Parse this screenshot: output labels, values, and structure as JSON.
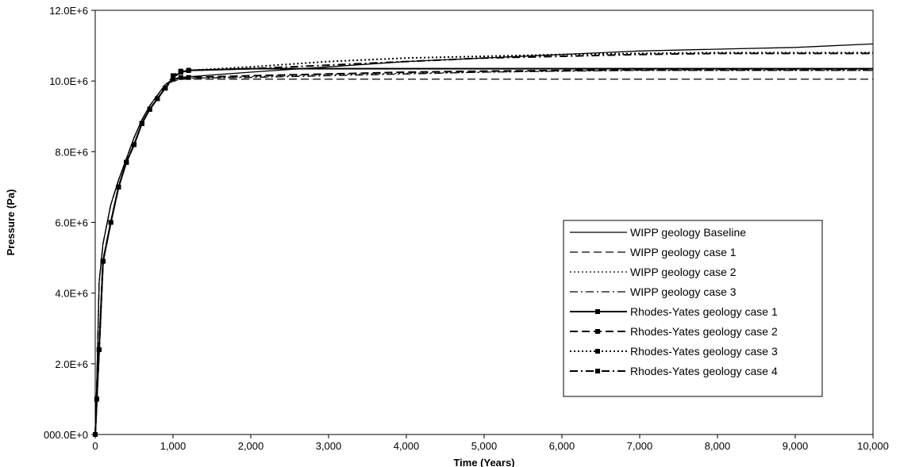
{
  "chart_data": {
    "type": "line",
    "title": "",
    "xlabel": "Time (Years)",
    "ylabel": "Pressure (Pa)",
    "xlim": [
      0,
      10000
    ],
    "ylim": [
      0,
      12000000
    ],
    "x_ticks": [
      0,
      1000,
      2000,
      3000,
      4000,
      5000,
      6000,
      7000,
      8000,
      9000,
      10000
    ],
    "x_tick_labels": [
      "0",
      "1,000",
      "2,000",
      "3,000",
      "4,000",
      "5,000",
      "6,000",
      "7,000",
      "8,000",
      "9,000",
      "10,000"
    ],
    "y_ticks": [
      0,
      2000000,
      4000000,
      6000000,
      8000000,
      10000000,
      12000000
    ],
    "y_tick_labels": [
      "000.0E+0",
      "2.0E+6",
      "4.0E+6",
      "6.0E+6",
      "8.0E+6",
      "10.0E+6",
      "12.0E+6"
    ],
    "grid": false,
    "legend_position": "bottom-right",
    "series": [
      {
        "name": "WIPP geology Baseline",
        "style": "solid",
        "marker": false,
        "x": [
          0,
          20,
          50,
          100,
          200,
          300,
          400,
          500,
          600,
          700,
          800,
          900,
          1000,
          1100,
          1200,
          2000,
          3000,
          4000,
          5000,
          6000,
          7000,
          8000,
          9000,
          10000
        ],
        "y": [
          0,
          1500000,
          4300000,
          5400000,
          6500000,
          7200000,
          7800000,
          8400000,
          8900000,
          9300000,
          9600000,
          9900000,
          10050000,
          10100000,
          10120000,
          10250000,
          10400000,
          10550000,
          10650000,
          10750000,
          10850000,
          10900000,
          10950000,
          11050000
        ]
      },
      {
        "name": "WIPP geology case 1",
        "style": "dash",
        "marker": false,
        "x": [
          0,
          20,
          50,
          100,
          200,
          300,
          400,
          500,
          600,
          700,
          800,
          900,
          1000,
          1100,
          1200,
          2000,
          3000,
          4000,
          5000,
          6000,
          7000,
          8000,
          9000,
          10000
        ],
        "y": [
          0,
          1500000,
          4300000,
          5400000,
          6500000,
          7200000,
          7800000,
          8400000,
          8900000,
          9300000,
          9600000,
          9850000,
          10000000,
          10050000,
          10050000,
          10050000,
          10050000,
          10050000,
          10050000,
          10050000,
          10050000,
          10050000,
          10050000,
          10050000
        ]
      },
      {
        "name": "WIPP geology case 2",
        "style": "dot",
        "marker": false,
        "x": [
          0,
          20,
          50,
          100,
          200,
          300,
          400,
          500,
          600,
          700,
          800,
          900,
          1000,
          1100,
          1200,
          2000,
          3000,
          4000,
          5000,
          6000,
          7000,
          8000,
          9000,
          10000
        ],
        "y": [
          0,
          1500000,
          4300000,
          5400000,
          6500000,
          7200000,
          7800000,
          8400000,
          8900000,
          9300000,
          9600000,
          9900000,
          10050000,
          10080000,
          10080000,
          10120000,
          10180000,
          10220000,
          10250000,
          10280000,
          10300000,
          10300000,
          10300000,
          10300000
        ]
      },
      {
        "name": "WIPP geology case 3",
        "style": "dashdot",
        "marker": false,
        "x": [
          0,
          20,
          50,
          100,
          200,
          300,
          400,
          500,
          600,
          700,
          800,
          900,
          1000,
          1100,
          1200,
          2000,
          3000,
          4000,
          5000,
          6000,
          7000,
          8000,
          9000,
          10000
        ],
        "y": [
          0,
          1500000,
          4300000,
          5400000,
          6500000,
          7200000,
          7800000,
          8400000,
          8900000,
          9300000,
          9600000,
          9900000,
          10050000,
          10080000,
          10080000,
          10100000,
          10150000,
          10200000,
          10250000,
          10280000,
          10300000,
          10300000,
          10300000,
          10300000
        ]
      },
      {
        "name": "Rhodes-Yates geology case 1",
        "style": "solid",
        "marker": true,
        "x": [
          0,
          20,
          50,
          100,
          200,
          300,
          400,
          500,
          600,
          700,
          800,
          900,
          1000,
          1100,
          1200,
          2000,
          3000,
          4000,
          5000,
          6000,
          7000,
          8000,
          9000,
          10000
        ],
        "y": [
          0,
          1000000,
          2400000,
          4900000,
          6000000,
          7000000,
          7700000,
          8200000,
          8800000,
          9200000,
          9500000,
          9800000,
          10100000,
          10250000,
          10300000,
          10350000,
          10350000,
          10350000,
          10350000,
          10350000,
          10350000,
          10350000,
          10350000,
          10350000
        ]
      },
      {
        "name": "Rhodes-Yates geology case 2",
        "style": "dash",
        "marker": true,
        "x": [
          0,
          20,
          50,
          100,
          200,
          300,
          400,
          500,
          600,
          700,
          800,
          900,
          1000,
          1100,
          1200,
          2000,
          3000,
          4000,
          5000,
          6000,
          7000,
          8000,
          9000,
          10000
        ],
        "y": [
          0,
          1000000,
          2400000,
          4900000,
          6000000,
          7000000,
          7700000,
          8200000,
          8800000,
          9200000,
          9500000,
          9800000,
          10050000,
          10100000,
          10100000,
          10150000,
          10200000,
          10250000,
          10280000,
          10300000,
          10320000,
          10330000,
          10330000,
          10340000
        ]
      },
      {
        "name": "Rhodes-Yates geology case 3",
        "style": "dot",
        "marker": true,
        "x": [
          0,
          20,
          50,
          100,
          200,
          300,
          400,
          500,
          600,
          700,
          800,
          900,
          1000,
          1100,
          1200,
          2000,
          3000,
          4000,
          5000,
          6000,
          7000,
          8000,
          9000,
          10000
        ],
        "y": [
          0,
          1000000,
          2400000,
          4900000,
          6000000,
          7000000,
          7700000,
          8200000,
          8800000,
          9200000,
          9500000,
          9800000,
          10150000,
          10280000,
          10300000,
          10400000,
          10550000,
          10650000,
          10700000,
          10750000,
          10780000,
          10800000,
          10800000,
          10800000
        ]
      },
      {
        "name": "Rhodes-Yates geology case 4",
        "style": "dashdot",
        "marker": true,
        "x": [
          0,
          20,
          50,
          100,
          200,
          300,
          400,
          500,
          600,
          700,
          800,
          900,
          1000,
          1100,
          1200,
          2000,
          3000,
          4000,
          5000,
          6000,
          7000,
          8000,
          9000,
          10000
        ],
        "y": [
          0,
          1000000,
          2400000,
          4900000,
          6000000,
          7000000,
          7700000,
          8200000,
          8800000,
          9200000,
          9500000,
          9800000,
          10100000,
          10250000,
          10300000,
          10350000,
          10450000,
          10550000,
          10650000,
          10700000,
          10750000,
          10780000,
          10780000,
          10780000
        ]
      }
    ]
  }
}
